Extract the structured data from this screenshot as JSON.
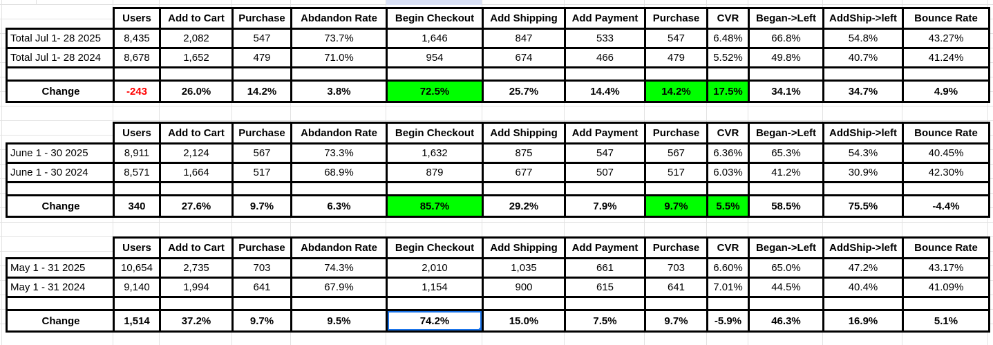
{
  "colors": {
    "highlight_green": "#00ff00",
    "negative_red": "#ff0000",
    "selection_blue": "#1a73e8",
    "column_hint_blue": "#dbe2f7",
    "gridline_gray": "#e2e2e2",
    "table_border": "#000000"
  },
  "columns": [
    "",
    "Users",
    "Add to Cart",
    "Purchase",
    "Abdandon Rate",
    "Begin Checkout",
    "Add Shipping",
    "Add Payment",
    "Purchase",
    "CVR",
    "Began->Left",
    "AddShip->left",
    "Bounce Rate"
  ],
  "tables": [
    {
      "rows": [
        {
          "label": "Total Jul 1- 28 2025",
          "values": [
            "8,435",
            "2,082",
            "547",
            "73.7%",
            "1,646",
            "847",
            "533",
            "547",
            "6.48%",
            "66.8%",
            "54.8%",
            "43.27%"
          ]
        },
        {
          "label": "Total Jul 1- 28 2024",
          "values": [
            "8,678",
            "1,652",
            "479",
            "71.0%",
            "954",
            "674",
            "466",
            "479",
            "5.52%",
            "49.8%",
            "40.7%",
            "41.24%"
          ]
        }
      ],
      "change": {
        "label": "Change",
        "values": [
          "-243",
          "26.0%",
          "14.2%",
          "3.8%",
          "72.5%",
          "25.7%",
          "14.4%",
          "14.2%",
          "17.5%",
          "34.1%",
          "34.7%",
          "4.9%"
        ],
        "styles": [
          "red",
          "",
          "",
          "",
          "green",
          "",
          "",
          "green",
          "green",
          "",
          "",
          ""
        ]
      }
    },
    {
      "rows": [
        {
          "label": "June 1 - 30 2025",
          "values": [
            "8,911",
            "2,124",
            "567",
            "73.3%",
            "1,632",
            "875",
            "547",
            "567",
            "6.36%",
            "65.3%",
            "54.3%",
            "40.45%"
          ]
        },
        {
          "label": "June 1 - 30 2024",
          "values": [
            "8,571",
            "1,664",
            "517",
            "68.9%",
            "879",
            "677",
            "507",
            "517",
            "6.03%",
            "41.2%",
            "30.9%",
            "42.30%"
          ]
        }
      ],
      "change": {
        "label": "Change",
        "values": [
          "340",
          "27.6%",
          "9.7%",
          "6.3%",
          "85.7%",
          "29.2%",
          "7.9%",
          "9.7%",
          "5.5%",
          "58.5%",
          "75.5%",
          "-4.4%"
        ],
        "styles": [
          "",
          "",
          "",
          "",
          "green",
          "",
          "",
          "green",
          "green",
          "",
          "",
          ""
        ]
      }
    },
    {
      "rows": [
        {
          "label": "May 1 - 31 2025",
          "values": [
            "10,654",
            "2,735",
            "703",
            "74.3%",
            "2,010",
            "1,035",
            "661",
            "703",
            "6.60%",
            "65.0%",
            "47.2%",
            "43.17%"
          ]
        },
        {
          "label": "May 1 - 31 2024",
          "values": [
            "9,140",
            "1,994",
            "641",
            "67.9%",
            "1,154",
            "900",
            "615",
            "641",
            "7.01%",
            "44.5%",
            "40.4%",
            "41.09%"
          ]
        }
      ],
      "change": {
        "label": "Change",
        "values": [
          "1,514",
          "37.2%",
          "9.7%",
          "9.5%",
          "74.2%",
          "15.0%",
          "7.5%",
          "9.7%",
          "-5.9%",
          "46.3%",
          "16.9%",
          "5.1%"
        ],
        "styles": [
          "",
          "",
          "",
          "",
          "selected",
          "",
          "",
          "",
          "",
          "",
          "",
          ""
        ]
      }
    }
  ]
}
